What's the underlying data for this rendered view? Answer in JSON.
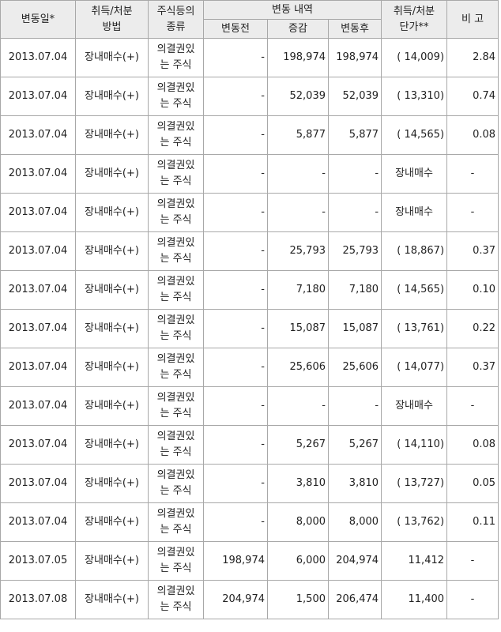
{
  "header": {
    "date": "변동일*",
    "method": [
      "취득/처분",
      "방법"
    ],
    "kind": [
      "주식등의",
      "종류"
    ],
    "change": "변동 내역",
    "sub": [
      "변동전",
      "증감",
      "변동후"
    ],
    "price": [
      "취득/처분",
      "단가**"
    ],
    "note": "비 고"
  },
  "table": {
    "rows": [
      [
        "2013.07.04",
        "장내매수(+)",
        [
          "의결권있",
          "는 주식"
        ],
        "-",
        "198,974",
        "198,974",
        "( 14,009)",
        "2.84"
      ],
      [
        "2013.07.04",
        "장내매수(+)",
        [
          "의결권있",
          "는 주식"
        ],
        "-",
        "52,039",
        "52,039",
        "( 13,310)",
        "0.74"
      ],
      [
        "2013.07.04",
        "장내매수(+)",
        [
          "의결권있",
          "는 주식"
        ],
        "-",
        "5,877",
        "5,877",
        "( 14,565)",
        "0.08"
      ],
      [
        "2013.07.04",
        "장내매수(+)",
        [
          "의결권있",
          "는 주식"
        ],
        "-",
        "-",
        "-",
        "장내매수",
        "-"
      ],
      [
        "2013.07.04",
        "장내매수(+)",
        [
          "의결권있",
          "는 주식"
        ],
        "-",
        "-",
        "-",
        "장내매수",
        "-"
      ],
      [
        "2013.07.04",
        "장내매수(+)",
        [
          "의결권있",
          "는 주식"
        ],
        "-",
        "25,793",
        "25,793",
        "( 18,867)",
        "0.37"
      ],
      [
        "2013.07.04",
        "장내매수(+)",
        [
          "의결권있",
          "는 주식"
        ],
        "-",
        "7,180",
        "7,180",
        "( 14,565)",
        "0.10"
      ],
      [
        "2013.07.04",
        "장내매수(+)",
        [
          "의결권있",
          "는 주식"
        ],
        "-",
        "15,087",
        "15,087",
        "( 13,761)",
        "0.22"
      ],
      [
        "2013.07.04",
        "장내매수(+)",
        [
          "의결권있",
          "는 주식"
        ],
        "-",
        "25,606",
        "25,606",
        "( 14,077)",
        "0.37"
      ],
      [
        "2013.07.04",
        "장내매수(+)",
        [
          "의결권있",
          "는 주식"
        ],
        "-",
        "-",
        "-",
        "장내매수",
        "-"
      ],
      [
        "2013.07.04",
        "장내매수(+)",
        [
          "의결권있",
          "는 주식"
        ],
        "-",
        "5,267",
        "5,267",
        "( 14,110)",
        "0.08"
      ],
      [
        "2013.07.04",
        "장내매수(+)",
        [
          "의결권있",
          "는 주식"
        ],
        "-",
        "3,810",
        "3,810",
        "( 13,727)",
        "0.05"
      ],
      [
        "2013.07.04",
        "장내매수(+)",
        [
          "의결권있",
          "는 주식"
        ],
        "-",
        "8,000",
        "8,000",
        "( 13,762)",
        "0.11"
      ],
      [
        "2013.07.05",
        "장내매수(+)",
        [
          "의결권있",
          "는 주식"
        ],
        "198,974",
        "6,000",
        "204,974",
        "11,412",
        "-"
      ],
      [
        "2013.07.08",
        "장내매수(+)",
        [
          "의결권있",
          "는 주식"
        ],
        "204,974",
        "1,500",
        "206,474",
        "11,400",
        "-"
      ]
    ]
  }
}
